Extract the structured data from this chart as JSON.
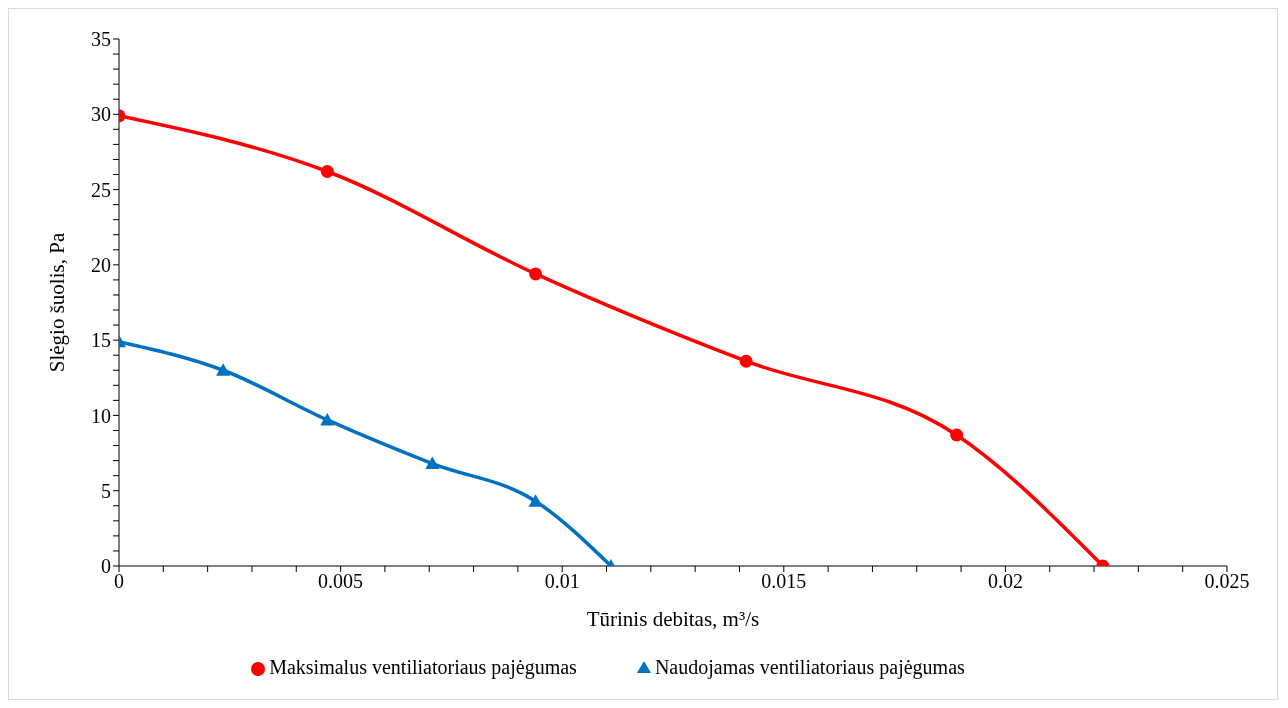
{
  "chart_data": {
    "type": "line",
    "xlabel": "Tūrinis debitas, m³/s",
    "ylabel": "Slėgio šuolis, Pa",
    "xlim": [
      0,
      0.025
    ],
    "xticks": [
      0,
      {
        "value": 0.001,
        "label": null
      },
      {
        "value": 0.002,
        "label": null
      },
      {
        "value": 0.003,
        "label": null
      },
      {
        "value": 0.004,
        "label": null
      },
      0.005,
      {
        "value": 0.006,
        "label": null
      },
      {
        "value": 0.007,
        "label": null
      },
      {
        "value": 0.008,
        "label": null
      },
      {
        "value": 0.009,
        "label": null
      },
      0.01,
      {
        "value": 0.011,
        "label": null
      },
      {
        "value": 0.012,
        "label": null
      },
      {
        "value": 0.013,
        "label": null
      },
      {
        "value": 0.014,
        "label": null
      },
      0.015,
      {
        "value": 0.016,
        "label": null
      },
      {
        "value": 0.017,
        "label": null
      },
      {
        "value": 0.018,
        "label": null
      },
      {
        "value": 0.019,
        "label": null
      },
      0.02,
      {
        "value": 0.021,
        "label": null
      },
      {
        "value": 0.022,
        "label": null
      },
      {
        "value": 0.023,
        "label": null
      },
      {
        "value": 0.024,
        "label": null
      },
      0.025
    ],
    "ylim": [
      0,
      35
    ],
    "yticks": [
      0,
      {
        "value": 1,
        "label": null
      },
      {
        "value": 2,
        "label": null
      },
      {
        "value": 3,
        "label": null
      },
      {
        "value": 4,
        "label": null
      },
      5,
      {
        "value": 6,
        "label": null
      },
      {
        "value": 7,
        "label": null
      },
      {
        "value": 8,
        "label": null
      },
      {
        "value": 9,
        "label": null
      },
      10,
      {
        "value": 11,
        "label": null
      },
      {
        "value": 12,
        "label": null
      },
      {
        "value": 13,
        "label": null
      },
      {
        "value": 14,
        "label": null
      },
      15,
      {
        "value": 16,
        "label": null
      },
      {
        "value": 17,
        "label": null
      },
      {
        "value": 18,
        "label": null
      },
      {
        "value": 19,
        "label": null
      },
      20,
      {
        "value": 21,
        "label": null
      },
      {
        "value": 22,
        "label": null
      },
      {
        "value": 23,
        "label": null
      },
      {
        "value": 24,
        "label": null
      },
      25,
      {
        "value": 26,
        "label": null
      },
      {
        "value": 27,
        "label": null
      },
      {
        "value": 28,
        "label": null
      },
      {
        "value": 29,
        "label": null
      },
      30,
      {
        "value": 31,
        "label": null
      },
      {
        "value": 32,
        "label": null
      },
      {
        "value": 33,
        "label": null
      },
      {
        "value": 34,
        "label": null
      },
      35
    ],
    "grid": false,
    "legend": "bottom",
    "line_style": "solid",
    "series": [
      {
        "name": "Maksimalus ventiliatoriaus pajėgumas",
        "color": "#ff0000",
        "marker": "circle",
        "x": [
          0,
          0.0047,
          0.0094,
          0.01415,
          0.0189,
          0.0222
        ],
        "values": [
          29.9,
          26.2,
          19.4,
          13.6,
          8.7,
          0
        ]
      },
      {
        "name": "Naudojamas ventiliatoriaus pajėgumas",
        "color": "#0070c0",
        "marker": "triangle",
        "x": [
          0,
          0.00235,
          0.0047,
          0.00707,
          0.0094,
          0.0111
        ],
        "values": [
          14.9,
          13.0,
          9.7,
          6.8,
          4.3,
          0
        ]
      }
    ]
  }
}
